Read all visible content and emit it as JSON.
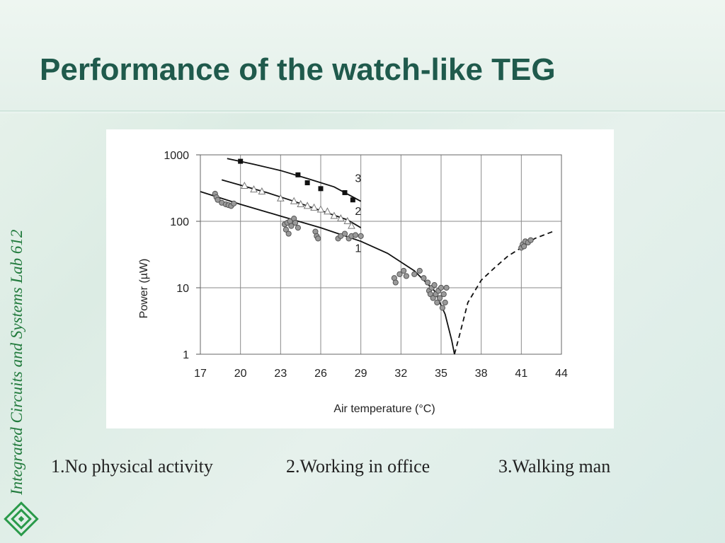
{
  "slide": {
    "title": "Performance of the watch-like TEG",
    "side_label": "Integrated Circuits and Systems Lab 612",
    "captions": [
      "1.No physical activity",
      "2.Working in office",
      "3.Walking man"
    ],
    "colors": {
      "title": "#1f5a4c",
      "side_label": "#217a3c",
      "background": "#e3f0ea"
    }
  },
  "chart_data": {
    "type": "scatter",
    "title": "",
    "xlabel": "Air temperature (°C)",
    "ylabel": "Power (µW)",
    "xlim": [
      17,
      44
    ],
    "ylim": [
      1,
      1000
    ],
    "y_scale": "log",
    "x_ticks": [
      17,
      20,
      23,
      26,
      29,
      32,
      35,
      38,
      41,
      44
    ],
    "x_tick_labels": [
      "17",
      "20",
      "23",
      "26",
      "29",
      "32",
      "35",
      "38",
      "41",
      "44"
    ],
    "y_ticks": [
      1,
      10,
      100,
      1000
    ],
    "y_tick_labels": [
      "1",
      "10",
      "100",
      "1000"
    ],
    "grid": true,
    "series": [
      {
        "name": "1",
        "marker": "circle",
        "points": [
          [
            18.1,
            260
          ],
          [
            18.2,
            230
          ],
          [
            18.3,
            210
          ],
          [
            18.6,
            190
          ],
          [
            18.9,
            180
          ],
          [
            19.1,
            175
          ],
          [
            19.3,
            170
          ],
          [
            19.5,
            185
          ],
          [
            23.3,
            90
          ],
          [
            23.4,
            75
          ],
          [
            23.5,
            95
          ],
          [
            23.6,
            65
          ],
          [
            23.7,
            100
          ],
          [
            23.8,
            85
          ],
          [
            24.0,
            110
          ],
          [
            24.1,
            95
          ],
          [
            24.3,
            80
          ],
          [
            25.6,
            70
          ],
          [
            25.7,
            60
          ],
          [
            25.8,
            55
          ],
          [
            27.3,
            55
          ],
          [
            27.5,
            60
          ],
          [
            27.8,
            65
          ],
          [
            28.1,
            55
          ],
          [
            28.3,
            60
          ],
          [
            28.6,
            62
          ],
          [
            29.0,
            60
          ],
          [
            31.5,
            14
          ],
          [
            31.6,
            12
          ],
          [
            31.9,
            16
          ],
          [
            32.2,
            18
          ],
          [
            32.4,
            15
          ],
          [
            33.0,
            16
          ],
          [
            33.4,
            18
          ],
          [
            33.7,
            14
          ],
          [
            34.0,
            12
          ],
          [
            34.1,
            9
          ],
          [
            34.2,
            8
          ],
          [
            34.3,
            10
          ],
          [
            34.4,
            7
          ],
          [
            34.5,
            11
          ],
          [
            34.6,
            8
          ],
          [
            34.7,
            6
          ],
          [
            34.8,
            9
          ],
          [
            34.9,
            7
          ],
          [
            35.0,
            10
          ],
          [
            35.1,
            5
          ],
          [
            35.2,
            8
          ],
          [
            35.3,
            6
          ],
          [
            35.4,
            10
          ],
          [
            41.0,
            40
          ],
          [
            41.1,
            45
          ],
          [
            41.2,
            42
          ],
          [
            41.3,
            50
          ],
          [
            41.5,
            48
          ],
          [
            41.7,
            52
          ]
        ]
      },
      {
        "name": "2",
        "marker": "triangle",
        "points": [
          [
            20.3,
            340
          ],
          [
            21.0,
            300
          ],
          [
            21.6,
            280
          ],
          [
            23.0,
            220
          ],
          [
            24.0,
            200
          ],
          [
            24.5,
            180
          ],
          [
            25.0,
            170
          ],
          [
            25.5,
            160
          ],
          [
            26.0,
            150
          ],
          [
            26.5,
            140
          ],
          [
            27.0,
            120
          ],
          [
            27.5,
            110
          ],
          [
            28.0,
            100
          ],
          [
            28.3,
            85
          ]
        ]
      },
      {
        "name": "3",
        "marker": "square",
        "points": [
          [
            20.0,
            800
          ],
          [
            24.3,
            500
          ],
          [
            25.0,
            380
          ],
          [
            26.0,
            310
          ],
          [
            27.8,
            270
          ],
          [
            28.4,
            210
          ]
        ]
      }
    ],
    "fit_lines": [
      {
        "series": "1",
        "style": "solid",
        "points": [
          [
            17.0,
            280
          ],
          [
            20.0,
            180
          ],
          [
            23.0,
            120
          ],
          [
            26.0,
            80
          ],
          [
            29.0,
            50
          ],
          [
            31.0,
            33
          ],
          [
            33.0,
            18
          ],
          [
            34.5,
            9
          ],
          [
            35.3,
            4
          ],
          [
            35.8,
            1.6
          ],
          [
            36.0,
            1
          ]
        ]
      },
      {
        "series": "1",
        "style": "dashed",
        "points": [
          [
            36.0,
            1
          ],
          [
            36.4,
            2
          ],
          [
            37.0,
            6
          ],
          [
            38.0,
            13
          ],
          [
            39.0,
            20
          ],
          [
            40.0,
            30
          ],
          [
            41.0,
            40
          ],
          [
            42.0,
            55
          ],
          [
            43.5,
            72
          ]
        ]
      },
      {
        "series": "2",
        "style": "solid",
        "points": [
          [
            18.6,
            420
          ],
          [
            20.0,
            350
          ],
          [
            22.0,
            270
          ],
          [
            24.0,
            200
          ],
          [
            26.0,
            145
          ],
          [
            28.0,
            105
          ],
          [
            29.0,
            80
          ]
        ]
      },
      {
        "series": "3",
        "style": "solid",
        "points": [
          [
            19.0,
            880
          ],
          [
            21.0,
            720
          ],
          [
            23.0,
            580
          ],
          [
            25.0,
            440
          ],
          [
            27.0,
            330
          ],
          [
            29.0,
            200
          ]
        ]
      }
    ],
    "annotations": [
      {
        "text": "3",
        "x": 28.8,
        "y": 450
      },
      {
        "text": "2",
        "x": 28.8,
        "y": 145
      },
      {
        "text": "1",
        "x": 28.8,
        "y": 40
      }
    ]
  }
}
